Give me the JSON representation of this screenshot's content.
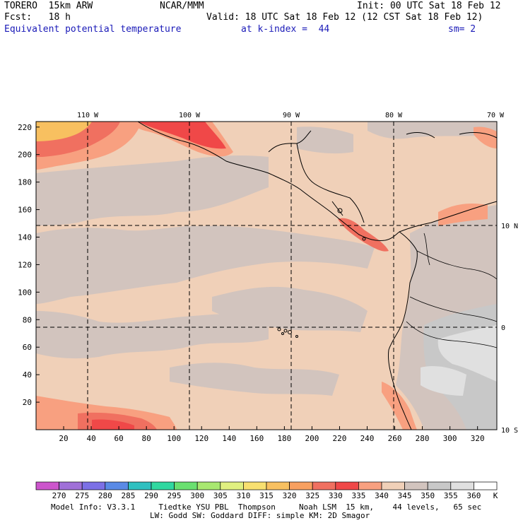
{
  "header": {
    "model": "TORERO  15km ARW",
    "org": "NCAR/MMM",
    "init": "Init: 00 UTC Sat 18 Feb 12",
    "fcst": "Fcst:   18 h",
    "valid": "Valid: 18 UTC Sat 18 Feb 12 (12 CST Sat 18 Feb 12)",
    "field": "Equivalent potential temperature",
    "level": "at k-index =  44",
    "smooth": "sm= 2"
  },
  "map": {
    "top_labels": [
      "110 W",
      "100 W",
      "90 W",
      "80 W",
      "70 W"
    ],
    "right_labels": [
      "10 N",
      "0",
      "10 S"
    ],
    "x_ticks": [
      "20",
      "40",
      "60",
      "80",
      "100",
      "120",
      "140",
      "160",
      "180",
      "200",
      "220",
      "240",
      "260",
      "280",
      "300",
      "320"
    ],
    "y_ticks": [
      "220",
      "200",
      "180",
      "160",
      "140",
      "120",
      "100",
      "80",
      "60",
      "40",
      "20"
    ]
  },
  "colorbar": {
    "labels": [
      "270",
      "275",
      "280",
      "285",
      "290",
      "295",
      "300",
      "305",
      "310",
      "315",
      "320",
      "325",
      "330",
      "335",
      "340",
      "345",
      "350",
      "355",
      "360"
    ],
    "unit": "K",
    "colors": [
      "#cc55cc",
      "#a070d8",
      "#7c70e6",
      "#5a8ae6",
      "#30c0c0",
      "#30d8a0",
      "#6ae070",
      "#a8e870",
      "#e0f080",
      "#f8e070",
      "#f8c060",
      "#f8a060",
      "#f07060",
      "#f04848",
      "#f8a080",
      "#f0d0b8",
      "#d2c4be",
      "#c8c8c8",
      "#e0e0e0",
      "#ffffff"
    ]
  },
  "footer": {
    "line1": "Model Info: V3.3.1     Tiedtke YSU PBL  Thompson     Noah LSM  15 km,    44 levels,   65 sec",
    "line2": "LW: Godd SW: Goddard DIFF: simple KM: 2D Smagor"
  }
}
